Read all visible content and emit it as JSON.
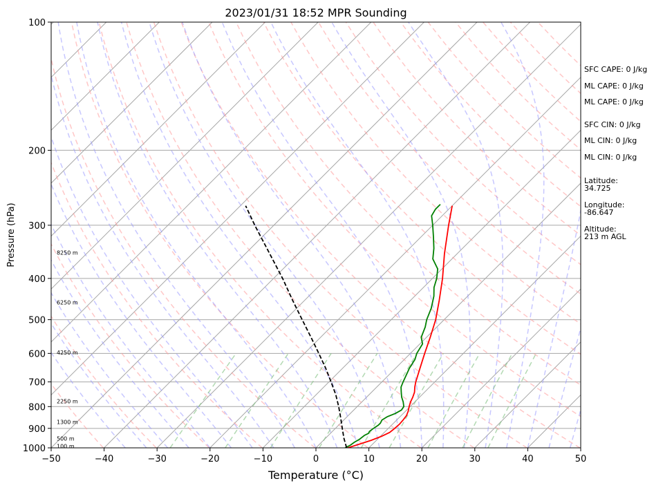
{
  "chart_data": {
    "type": "line",
    "title": "2023/01/31 18:52 MPR Sounding",
    "xlabel": "Temperature (°C)",
    "ylabel": "Pressure (hPa)",
    "xlim": [
      -50,
      50
    ],
    "ylim": [
      1000,
      100
    ],
    "y_scale": "log",
    "grid": true,
    "x_ticks": [
      "−50",
      "−40",
      "−30",
      "−20",
      "−10",
      "0",
      "10",
      "20",
      "30",
      "40",
      "50"
    ],
    "y_ticks": [
      {
        "p": 100,
        "label": "100"
      },
      {
        "p": 200,
        "label": "200"
      },
      {
        "p": 300,
        "label": "300"
      },
      {
        "p": 400,
        "label": "400"
      },
      {
        "p": 500,
        "label": "500"
      },
      {
        "p": 600,
        "label": "600"
      },
      {
        "p": 700,
        "label": "700"
      },
      {
        "p": 800,
        "label": "800"
      },
      {
        "p": 900,
        "label": "900"
      },
      {
        "p": 1000,
        "label": "1000"
      }
    ],
    "height_labels": [
      {
        "p": 348,
        "label": "8250 m"
      },
      {
        "p": 455,
        "label": "6250 m"
      },
      {
        "p": 597,
        "label": "4250 m"
      },
      {
        "p": 777,
        "label": "2250 m"
      },
      {
        "p": 870,
        "label": "1300 m"
      },
      {
        "p": 950,
        "label": "500 m"
      },
      {
        "p": 990,
        "label": "100 m"
      }
    ],
    "series": [
      {
        "id": "temperature",
        "color": "#ff0000",
        "points": [
          [
            1000,
            6.0
          ],
          [
            980,
            7.5
          ],
          [
            960,
            9.0
          ],
          [
            940,
            10.2
          ],
          [
            920,
            11.0
          ],
          [
            900,
            11.2
          ],
          [
            880,
            11.3
          ],
          [
            860,
            11.2
          ],
          [
            840,
            11.0
          ],
          [
            820,
            10.5
          ],
          [
            800,
            9.8
          ],
          [
            780,
            9.2
          ],
          [
            760,
            8.7
          ],
          [
            740,
            8.1
          ],
          [
            720,
            7.2
          ],
          [
            700,
            6.4
          ],
          [
            650,
            4.6
          ],
          [
            600,
            2.7
          ],
          [
            550,
            0.7
          ],
          [
            500,
            -1.6
          ],
          [
            450,
            -4.6
          ],
          [
            400,
            -8.1
          ],
          [
            350,
            -12.4
          ],
          [
            300,
            -17.0
          ],
          [
            270,
            -20.0
          ]
        ]
      },
      {
        "id": "dewpoint",
        "color": "#008000",
        "points": [
          [
            1000,
            5.5
          ],
          [
            985,
            6.0
          ],
          [
            970,
            6.2
          ],
          [
            955,
            6.6
          ],
          [
            935,
            6.8
          ],
          [
            925,
            7.2
          ],
          [
            915,
            7.0
          ],
          [
            900,
            7.2
          ],
          [
            885,
            7.5
          ],
          [
            875,
            7.5
          ],
          [
            860,
            7.2
          ],
          [
            845,
            7.6
          ],
          [
            830,
            8.5
          ],
          [
            815,
            9.0
          ],
          [
            800,
            8.8
          ],
          [
            780,
            7.8
          ],
          [
            760,
            6.6
          ],
          [
            740,
            5.6
          ],
          [
            720,
            4.6
          ],
          [
            700,
            4.0
          ],
          [
            650,
            2.6
          ],
          [
            620,
            2.0
          ],
          [
            600,
            1.2
          ],
          [
            570,
            0.5
          ],
          [
            550,
            -1.0
          ],
          [
            520,
            -2.2
          ],
          [
            500,
            -3.3
          ],
          [
            470,
            -4.6
          ],
          [
            440,
            -6.4
          ],
          [
            420,
            -8.0
          ],
          [
            400,
            -9.2
          ],
          [
            380,
            -10.8
          ],
          [
            360,
            -13.6
          ],
          [
            340,
            -15.4
          ],
          [
            320,
            -17.6
          ],
          [
            300,
            -20.0
          ],
          [
            285,
            -22.0
          ],
          [
            275,
            -22.5
          ],
          [
            268,
            -22.5
          ]
        ]
      },
      {
        "id": "parcel",
        "color": "#000000",
        "dashed": true,
        "points": [
          [
            1000,
            5.8
          ],
          [
            950,
            3.5
          ],
          [
            900,
            1.3
          ],
          [
            850,
            -1.0
          ],
          [
            800,
            -3.5
          ],
          [
            750,
            -6.3
          ],
          [
            700,
            -9.6
          ],
          [
            650,
            -13.2
          ],
          [
            600,
            -17.3
          ],
          [
            550,
            -21.8
          ],
          [
            500,
            -26.8
          ],
          [
            450,
            -32.3
          ],
          [
            400,
            -38.3
          ],
          [
            350,
            -45.4
          ],
          [
            300,
            -53.6
          ],
          [
            270,
            -59.0
          ]
        ]
      }
    ],
    "annotations": [
      "SFC CAPE: 0 J/kg",
      "ML CAPE: 0 J/kg",
      "ML CAPE: 0 J/kg",
      "SFC CIN: 0 J/kg",
      "ML CIN: 0 J/kg",
      "ML CIN: 0 J/kg",
      "Latitude:",
      "34.725",
      "Longitude:",
      "-86.647",
      "Altitude:",
      "213 m AGL"
    ]
  },
  "colors": {
    "dry_adiabat": "#ff9999",
    "moist_adiabat": "#9999ff",
    "mixing_ratio": "#7fbf7f",
    "isotherm": "#a6a6a6",
    "isobar": "#a6a6a6"
  }
}
